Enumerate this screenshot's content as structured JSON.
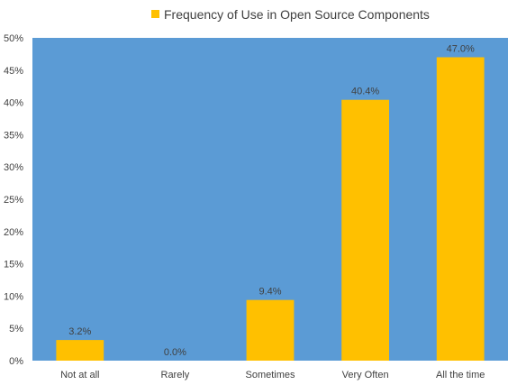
{
  "chart_data": {
    "type": "bar",
    "legend_position": "top",
    "grid": false,
    "colors": {
      "plot_background": "#5b9bd5",
      "bar": "#ffc000",
      "text": "#404040"
    },
    "series": [
      {
        "name": "Frequency of Use in Open Source Components",
        "values": [
          3.2,
          0.0,
          9.4,
          40.4,
          47.0
        ]
      }
    ],
    "categories": [
      "Not at all",
      "Rarely",
      "Sometimes",
      "Very Often",
      "All the time"
    ],
    "data_labels": [
      "3.2%",
      "0.0%",
      "9.4%",
      "40.4%",
      "47.0%"
    ],
    "ylim": [
      0,
      50
    ],
    "yticks": [
      0,
      5,
      10,
      15,
      20,
      25,
      30,
      35,
      40,
      45,
      50
    ],
    "ytick_labels": [
      "0%",
      "5%",
      "10%",
      "15%",
      "20%",
      "25%",
      "30%",
      "35%",
      "40%",
      "45%",
      "50%"
    ]
  }
}
